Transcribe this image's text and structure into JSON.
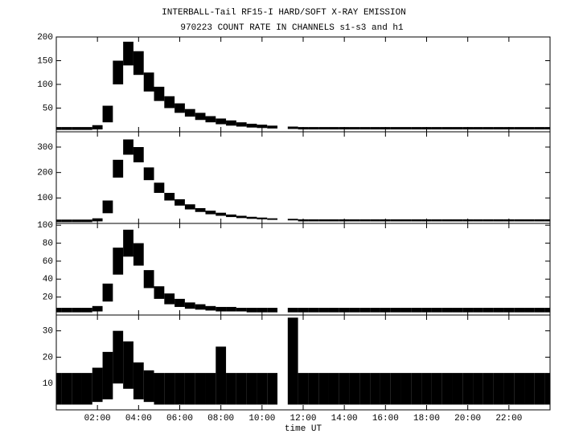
{
  "chart_data": [
    {
      "type": "band",
      "title": "INTERBALL-Tail RF15-I HARD/SOFT X-RAY EMISSION",
      "subtitle": "970223  COUNT RATE IN CHANNELS s1-s3 and h1",
      "x": [
        0,
        0.5,
        1,
        1.5,
        2,
        2.5,
        3,
        3.5,
        4,
        4.5,
        5,
        5.5,
        6,
        6.5,
        7,
        7.5,
        8,
        8.5,
        9,
        9.5,
        10,
        10.5,
        11,
        11.5,
        12,
        12.5,
        13,
        13.5,
        14,
        14.5,
        15,
        15.5,
        16,
        16.5,
        17,
        17.5,
        18,
        18.5,
        19,
        19.5,
        20,
        20.5,
        21,
        21.5,
        22,
        22.5,
        23,
        23.5,
        24
      ],
      "series": [
        {
          "color": "#000000",
          "values": [
            4,
            4,
            4,
            4,
            5,
            20,
            100,
            140,
            120,
            85,
            65,
            50,
            40,
            32,
            25,
            20,
            16,
            13,
            11,
            9,
            8,
            7,
            null,
            6,
            5,
            5,
            5,
            5,
            5,
            5,
            5,
            5,
            5,
            5,
            5,
            5,
            5,
            5,
            5,
            5,
            5,
            5,
            5,
            5,
            5,
            5,
            5,
            5,
            5
          ]
        },
        {
          "color": "#000000",
          "values": [
            10,
            10,
            10,
            10,
            14,
            55,
            150,
            190,
            170,
            125,
            95,
            75,
            60,
            48,
            40,
            33,
            28,
            24,
            20,
            17,
            15,
            13,
            null,
            11,
            10,
            10,
            10,
            10,
            10,
            10,
            10,
            10,
            10,
            10,
            10,
            10,
            10,
            10,
            10,
            10,
            10,
            10,
            10,
            10,
            10,
            10,
            10,
            10,
            10
          ]
        }
      ],
      "xlim": [
        0,
        24
      ],
      "ylim": [
        0,
        200
      ],
      "yticks": [
        50,
        100,
        150,
        200
      ]
    },
    {
      "type": "band",
      "x": [
        0,
        0.5,
        1,
        1.5,
        2,
        2.5,
        3,
        3.5,
        4,
        4.5,
        5,
        5.5,
        6,
        6.5,
        7,
        7.5,
        8,
        8.5,
        9,
        9.5,
        10,
        10.5,
        11,
        11.5,
        12,
        12.5,
        13,
        13.5,
        14,
        14.5,
        15,
        15.5,
        16,
        16.5,
        17,
        17.5,
        18,
        18.5,
        19,
        19.5,
        20,
        20.5,
        21,
        21.5,
        22,
        22.5,
        23,
        23.5,
        24
      ],
      "series": [
        {
          "color": "#000000",
          "values": [
            5,
            5,
            5,
            5,
            8,
            40,
            180,
            270,
            240,
            170,
            120,
            90,
            70,
            55,
            45,
            36,
            30,
            25,
            21,
            18,
            16,
            14,
            null,
            12,
            8,
            8,
            8,
            8,
            8,
            8,
            8,
            8,
            8,
            8,
            8,
            8,
            8,
            8,
            8,
            8,
            8,
            8,
            8,
            8,
            8,
            8,
            8,
            8,
            8
          ]
        },
        {
          "color": "#000000",
          "values": [
            15,
            15,
            15,
            15,
            20,
            90,
            250,
            330,
            300,
            220,
            160,
            120,
            95,
            75,
            60,
            50,
            42,
            35,
            30,
            26,
            23,
            20,
            null,
            18,
            16,
            16,
            16,
            16,
            16,
            16,
            16,
            16,
            16,
            16,
            16,
            16,
            16,
            16,
            16,
            16,
            16,
            16,
            16,
            16,
            16,
            16,
            16,
            16,
            16
          ]
        }
      ],
      "xlim": [
        0,
        24
      ],
      "ylim": [
        0,
        360
      ],
      "yticks": [
        100,
        200,
        300
      ]
    },
    {
      "type": "band",
      "x": [
        0,
        0.5,
        1,
        1.5,
        2,
        2.5,
        3,
        3.5,
        4,
        4.5,
        5,
        5.5,
        6,
        6.5,
        7,
        7.5,
        8,
        8.5,
        9,
        9.5,
        10,
        10.5,
        11,
        11.5,
        12,
        12.5,
        13,
        13.5,
        14,
        14.5,
        15,
        15.5,
        16,
        16.5,
        17,
        17.5,
        18,
        18.5,
        19,
        19.5,
        20,
        20.5,
        21,
        21.5,
        22,
        22.5,
        23,
        23.5,
        24
      ],
      "series": [
        {
          "color": "#000000",
          "values": [
            3,
            3,
            3,
            3,
            4,
            15,
            45,
            65,
            55,
            30,
            18,
            12,
            9,
            7,
            6,
            5,
            4,
            4,
            4,
            3,
            3,
            3,
            null,
            3,
            3,
            3,
            3,
            3,
            3,
            3,
            3,
            3,
            3,
            3,
            3,
            3,
            3,
            3,
            3,
            3,
            3,
            3,
            3,
            3,
            3,
            3,
            3,
            3,
            3
          ]
        },
        {
          "color": "#000000",
          "values": [
            8,
            8,
            8,
            8,
            10,
            35,
            75,
            95,
            80,
            50,
            32,
            24,
            18,
            14,
            12,
            10,
            9,
            9,
            8,
            8,
            8,
            8,
            null,
            8,
            8,
            8,
            8,
            8,
            8,
            8,
            8,
            8,
            8,
            8,
            8,
            8,
            8,
            8,
            8,
            8,
            8,
            8,
            8,
            8,
            8,
            8,
            8,
            8,
            8
          ]
        }
      ],
      "xlim": [
        0,
        24
      ],
      "ylim": [
        0,
        102
      ],
      "yticks": [
        20,
        40,
        60,
        80,
        100
      ]
    },
    {
      "type": "band",
      "xlabel": "time UT",
      "x": [
        0,
        0.5,
        1,
        1.5,
        2,
        2.5,
        3,
        3.5,
        4,
        4.5,
        5,
        5.5,
        6,
        6.5,
        7,
        7.5,
        8,
        8.5,
        9,
        9.5,
        10,
        10.5,
        11,
        11.5,
        12,
        12.5,
        13,
        13.5,
        14,
        14.5,
        15,
        15.5,
        16,
        16.5,
        17,
        17.5,
        18,
        18.5,
        19,
        19.5,
        20,
        20.5,
        21,
        21.5,
        22,
        22.5,
        23,
        23.5,
        24
      ],
      "series": [
        {
          "color": "#000000",
          "values": [
            2,
            2,
            2,
            2,
            3,
            4,
            10,
            8,
            4,
            3,
            2,
            2,
            2,
            2,
            2,
            2,
            2,
            2,
            2,
            2,
            2,
            2,
            null,
            2,
            2,
            2,
            2,
            2,
            2,
            2,
            2,
            2,
            2,
            2,
            2,
            2,
            2,
            2,
            2,
            2,
            2,
            2,
            2,
            2,
            2,
            2,
            2,
            2,
            2
          ]
        },
        {
          "color": "#000000",
          "values": [
            14,
            14,
            14,
            14,
            16,
            22,
            30,
            26,
            18,
            15,
            14,
            14,
            14,
            14,
            14,
            14,
            24,
            14,
            14,
            14,
            14,
            14,
            null,
            35,
            14,
            14,
            14,
            14,
            14,
            14,
            14,
            14,
            14,
            14,
            14,
            14,
            14,
            14,
            14,
            14,
            14,
            14,
            14,
            14,
            14,
            14,
            14,
            14,
            14
          ]
        }
      ],
      "xlim": [
        0,
        24
      ],
      "ylim": [
        0,
        36
      ],
      "yticks": [
        10,
        20,
        30
      ],
      "xticks": [
        {
          "value": 2,
          "label": "02:00"
        },
        {
          "value": 4,
          "label": "04:00"
        },
        {
          "value": 6,
          "label": "06:00"
        },
        {
          "value": 8,
          "label": "08:00"
        },
        {
          "value": 10,
          "label": "10:00"
        },
        {
          "value": 12,
          "label": "12:00"
        },
        {
          "value": 14,
          "label": "14:00"
        },
        {
          "value": 16,
          "label": "16:00"
        },
        {
          "value": 18,
          "label": "18:00"
        },
        {
          "value": 20,
          "label": "20:00"
        },
        {
          "value": 22,
          "label": "22:00"
        }
      ]
    }
  ]
}
